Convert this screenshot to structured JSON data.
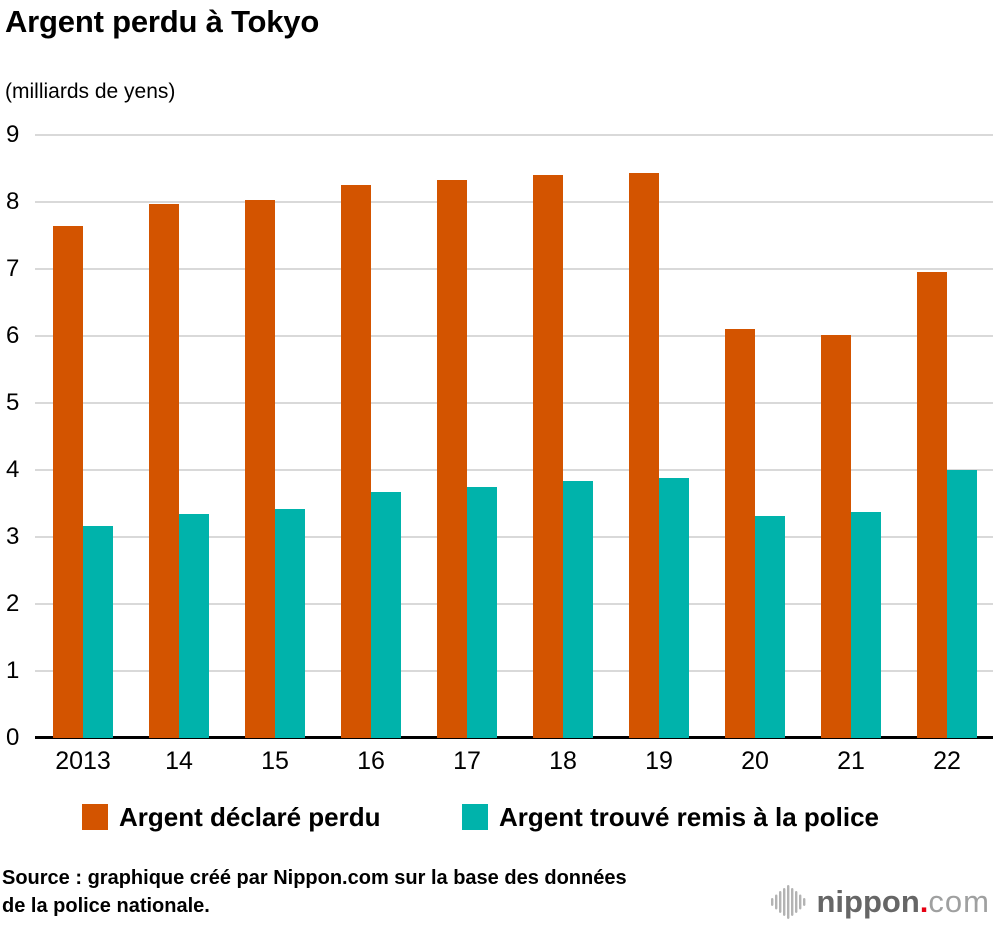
{
  "title": "Argent perdu à Tokyo",
  "subtitle": "(milliards de yens)",
  "chart_data": {
    "type": "bar",
    "categories": [
      "2013",
      "14",
      "15",
      "16",
      "17",
      "18",
      "19",
      "20",
      "21",
      "22"
    ],
    "series": [
      {
        "name": "Argent déclaré perdu",
        "color": "#d35400",
        "values": [
          7.64,
          7.97,
          8.03,
          8.25,
          8.33,
          8.41,
          8.44,
          6.11,
          6.02,
          6.95
        ]
      },
      {
        "name": "Argent trouvé remis à la police",
        "color": "#00b3ab",
        "values": [
          3.16,
          3.34,
          3.42,
          3.67,
          3.75,
          3.84,
          3.88,
          3.31,
          3.38,
          4.0
        ]
      }
    ],
    "ylabel": "milliards de yens",
    "ylim": [
      0,
      9
    ],
    "yticks": [
      0,
      1,
      2,
      3,
      4,
      5,
      6,
      7,
      8,
      9
    ],
    "grid": true,
    "legend_position": "bottom"
  },
  "colors": {
    "grid": "#d9d9d9",
    "axis": "#000000",
    "logo_icon": "#b3b3b3",
    "logo_name": "#666666",
    "logo_dot": "#e60012",
    "logo_tld": "#9fa0a0"
  },
  "source": {
    "line1": "Source : graphique créé par Nippon.com sur la base des données",
    "line2": "de la police nationale."
  },
  "logo": {
    "name": "nippon",
    "dot": ".",
    "tld": "com"
  }
}
